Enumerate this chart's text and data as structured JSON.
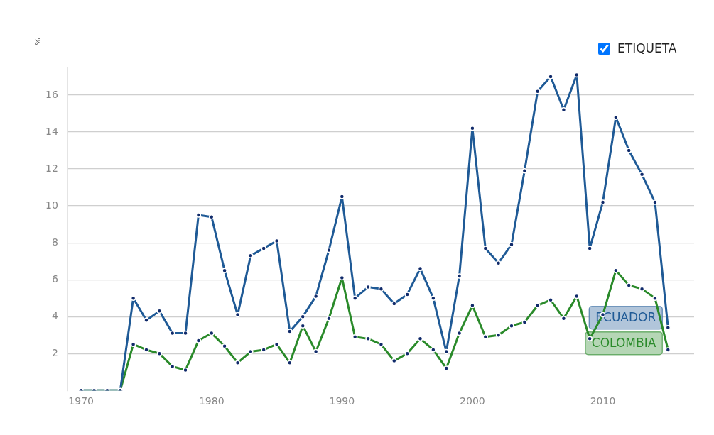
{
  "chart_data": {
    "type": "line",
    "x": [
      1970,
      1971,
      1972,
      1973,
      1974,
      1975,
      1976,
      1977,
      1978,
      1979,
      1980,
      1981,
      1982,
      1983,
      1984,
      1985,
      1986,
      1987,
      1988,
      1989,
      1990,
      1991,
      1992,
      1993,
      1994,
      1995,
      1996,
      1997,
      1998,
      1999,
      2000,
      2001,
      2002,
      2003,
      2004,
      2005,
      2006,
      2007,
      2008,
      2009,
      2010,
      2011,
      2012,
      2013,
      2014,
      2015
    ],
    "series": [
      {
        "name": "ECUADOR",
        "color": "#1f5a96",
        "values": [
          0,
          0,
          0,
          0,
          5.0,
          3.8,
          4.3,
          3.1,
          3.1,
          9.5,
          9.4,
          6.5,
          4.1,
          7.3,
          7.7,
          8.1,
          3.2,
          4.0,
          5.1,
          7.6,
          10.5,
          5.0,
          5.6,
          5.5,
          4.7,
          5.2,
          6.6,
          5.0,
          2.1,
          6.2,
          14.2,
          7.7,
          6.9,
          7.9,
          11.9,
          16.2,
          17.0,
          15.2,
          17.1,
          7.7,
          10.2,
          14.8,
          13.0,
          11.7,
          10.2,
          3.4
        ]
      },
      {
        "name": "COLOMBIA",
        "color": "#2a8a2a",
        "values": [
          0,
          0,
          0,
          0,
          2.5,
          2.2,
          2.0,
          1.3,
          1.1,
          2.7,
          3.1,
          2.4,
          1.5,
          2.1,
          2.2,
          2.5,
          1.5,
          3.5,
          2.1,
          3.9,
          6.1,
          2.9,
          2.8,
          2.5,
          1.6,
          2.0,
          2.8,
          2.2,
          1.2,
          3.1,
          4.6,
          2.9,
          3.0,
          3.5,
          3.7,
          4.6,
          4.9,
          3.9,
          5.1,
          2.8,
          4.1,
          6.5,
          5.7,
          5.5,
          5.0,
          2.2
        ]
      }
    ],
    "xlim": [
      1969,
      2017
    ],
    "ylim": [
      0,
      17.5
    ],
    "xticks": [
      1970,
      1980,
      1990,
      2000,
      2010
    ],
    "yticks": [
      2,
      4,
      6,
      8,
      10,
      12,
      14,
      16
    ],
    "grid": "y",
    "marker": "circle",
    "line_style": "solid",
    "annotations": [
      "ETIQUETA",
      "%"
    ]
  }
}
